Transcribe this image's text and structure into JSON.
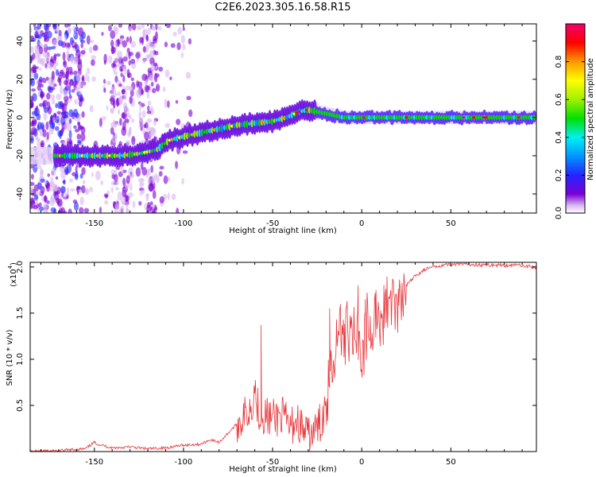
{
  "title": "C2E6.2023.305.16.58.R15",
  "chart_data": [
    {
      "type": "heatmap",
      "title": "C2E6.2023.305.16.58.R15",
      "xlabel": "Height of straight line (km)",
      "ylabel": "Frequency (Hz)",
      "xlim": [
        -186,
        98
      ],
      "ylim": [
        -50,
        49
      ],
      "xticks": [
        -150,
        -100,
        -50,
        0,
        50
      ],
      "yticks": [
        -40,
        -20,
        0,
        20,
        40
      ],
      "xtick_labels": [
        "-150",
        "-100",
        "-50",
        "0",
        "50"
      ],
      "ytick_labels": [
        "-40",
        "-20",
        "0",
        "20",
        "40"
      ],
      "ridge": {
        "x": [
          -186,
          -175,
          -165,
          -150,
          -135,
          -125,
          -115,
          -108,
          -100,
          -90,
          -80,
          -70,
          -60,
          -50,
          -42,
          -35,
          -30,
          -25,
          -20,
          -15,
          -10,
          0,
          10,
          20,
          30,
          50,
          70,
          98
        ],
        "y": [
          -20,
          -20,
          -20,
          -20,
          -20,
          -19,
          -17,
          -12,
          -10,
          -8,
          -6,
          -4,
          -3,
          -2,
          0,
          3,
          4,
          3,
          2,
          1,
          0,
          0,
          0,
          0,
          0,
          0,
          0,
          0
        ]
      },
      "colorbar": {
        "label": "Normalized spectral amplitude",
        "range": [
          0,
          1
        ],
        "ticks": [
          "0.0",
          "0.2",
          "0.4",
          "0.6",
          "0.8"
        ],
        "tick_values": [
          0,
          0.2,
          0.4,
          0.6,
          0.8
        ],
        "colormap": "rainbow"
      }
    },
    {
      "type": "line",
      "xlabel": "Height of straight line (km)",
      "ylabel": "SNR (10 * v/v)",
      "multiplier_label": "(x10",
      "multiplier_exp": "4",
      "multiplier_close": ")",
      "xlim": [
        -186,
        98
      ],
      "ylim": [
        0,
        2.05
      ],
      "xticks": [
        -150,
        -100,
        -50,
        0,
        50
      ],
      "yticks": [
        0.5,
        1.0,
        1.5,
        2.0
      ],
      "xtick_labels": [
        "-150",
        "-100",
        "-50",
        "0",
        "50"
      ],
      "ytick_labels": [
        "0.5",
        "1.0",
        "1.5",
        "2.0"
      ],
      "series": [
        {
          "name": "SNR",
          "color": "#e8383d",
          "x": [
            -186,
            -170,
            -155,
            -150,
            -148,
            -140,
            -130,
            -120,
            -110,
            -100,
            -90,
            -85,
            -80,
            -75,
            -70,
            -65,
            -62,
            -60,
            -58,
            -55,
            -50,
            -45,
            -42,
            -40,
            -37,
            -35,
            -30,
            -25,
            -22,
            -20,
            -18,
            -15,
            -12,
            -10,
            -8,
            -5,
            -3,
            0,
            3,
            5,
            8,
            10,
            13,
            15,
            20,
            25,
            30,
            35,
            40,
            45,
            50,
            60,
            70,
            80,
            90,
            98
          ],
          "y": [
            0.0,
            0.01,
            0.03,
            0.1,
            0.08,
            0.04,
            0.05,
            0.03,
            0.04,
            0.07,
            0.08,
            0.13,
            0.1,
            0.2,
            0.3,
            0.4,
            0.5,
            0.7,
            0.45,
            0.4,
            0.35,
            0.4,
            0.3,
            0.25,
            0.35,
            0.3,
            0.15,
            0.25,
            0.35,
            0.6,
            0.9,
            1.2,
            1.3,
            1.15,
            1.4,
            1.3,
            1.35,
            1.1,
            1.45,
            1.35,
            1.6,
            1.5,
            1.55,
            1.7,
            1.7,
            1.8,
            1.9,
            1.97,
            2.0,
            2.02,
            2.03,
            2.03,
            2.02,
            2.02,
            2.02,
            1.99
          ]
        }
      ],
      "spikes": [
        {
          "x": -56.5,
          "y": 1.37
        },
        {
          "x": -18,
          "y": 1.55
        },
        {
          "x": -12,
          "y": 1.6
        },
        {
          "x": -2,
          "y": 1.8
        },
        {
          "x": 2,
          "y": 1.65
        },
        {
          "x": 8,
          "y": 1.75
        }
      ]
    }
  ]
}
